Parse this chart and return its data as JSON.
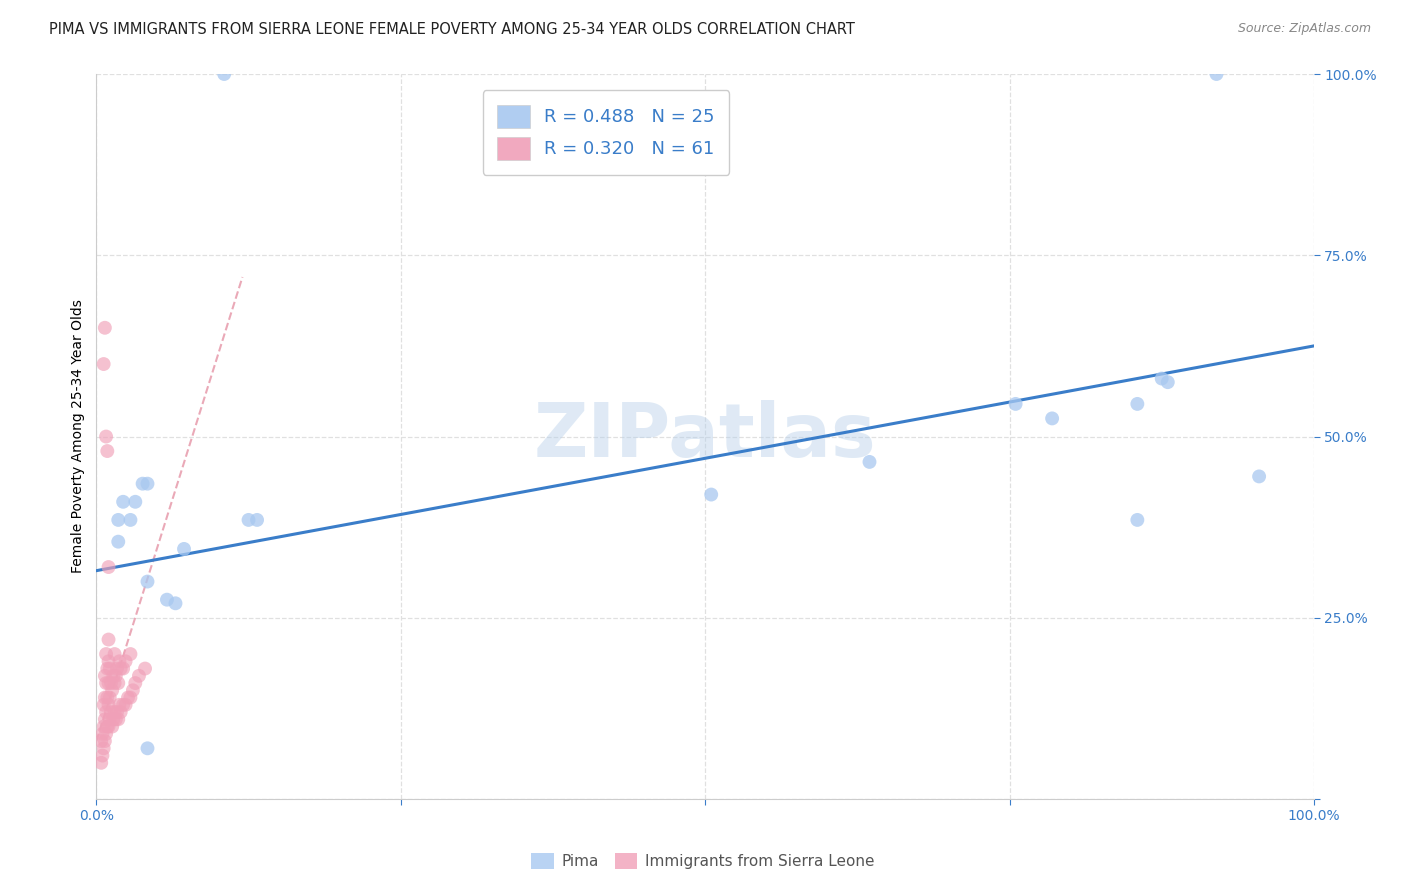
{
  "title": "PIMA VS IMMIGRANTS FROM SIERRA LEONE FEMALE POVERTY AMONG 25-34 YEAR OLDS CORRELATION CHART",
  "source": "Source: ZipAtlas.com",
  "ylabel": "Female Poverty Among 25-34 Year Olds",
  "xlim": [
    0,
    1.0
  ],
  "ylim": [
    0,
    1.0
  ],
  "watermark": "ZIPatlas",
  "legend_r1": "R = 0.488",
  "legend_n1": "N = 25",
  "legend_r2": "R = 0.320",
  "legend_n2": "N = 61",
  "color_pima": "#A8C8F0",
  "color_sierra": "#F0A0B8",
  "pima_scatter_x": [
    0.018,
    0.018,
    0.022,
    0.028,
    0.032,
    0.038,
    0.042,
    0.042,
    0.058,
    0.065,
    0.072,
    0.125,
    0.132,
    0.505,
    0.635,
    0.755,
    0.785,
    0.855,
    0.855,
    0.875,
    0.88,
    0.92,
    0.955,
    0.105,
    0.042
  ],
  "pima_scatter_y": [
    0.355,
    0.385,
    0.41,
    0.385,
    0.41,
    0.435,
    0.435,
    0.3,
    0.275,
    0.27,
    0.345,
    0.385,
    0.385,
    0.42,
    0.465,
    0.545,
    0.525,
    0.545,
    0.385,
    0.58,
    0.575,
    1.0,
    0.445,
    1.0,
    0.07
  ],
  "pima_trendline_x": [
    0.0,
    1.0
  ],
  "pima_trendline_y": [
    0.315,
    0.625
  ],
  "sierra_scatter_x": [
    0.004,
    0.004,
    0.005,
    0.005,
    0.006,
    0.006,
    0.006,
    0.007,
    0.007,
    0.007,
    0.007,
    0.008,
    0.008,
    0.008,
    0.008,
    0.009,
    0.009,
    0.009,
    0.01,
    0.01,
    0.01,
    0.01,
    0.01,
    0.011,
    0.011,
    0.011,
    0.012,
    0.012,
    0.013,
    0.013,
    0.014,
    0.014,
    0.015,
    0.015,
    0.015,
    0.016,
    0.016,
    0.017,
    0.017,
    0.018,
    0.018,
    0.019,
    0.019,
    0.02,
    0.02,
    0.022,
    0.022,
    0.024,
    0.024,
    0.026,
    0.028,
    0.028,
    0.03,
    0.032,
    0.035,
    0.04,
    0.006,
    0.007,
    0.008,
    0.009,
    0.01
  ],
  "sierra_scatter_y": [
    0.05,
    0.08,
    0.06,
    0.09,
    0.07,
    0.1,
    0.13,
    0.08,
    0.11,
    0.14,
    0.17,
    0.09,
    0.12,
    0.16,
    0.2,
    0.1,
    0.14,
    0.18,
    0.1,
    0.13,
    0.16,
    0.19,
    0.22,
    0.11,
    0.14,
    0.18,
    0.12,
    0.16,
    0.1,
    0.15,
    0.11,
    0.17,
    0.12,
    0.16,
    0.2,
    0.11,
    0.17,
    0.12,
    0.18,
    0.11,
    0.16,
    0.13,
    0.19,
    0.12,
    0.18,
    0.13,
    0.18,
    0.13,
    0.19,
    0.14,
    0.14,
    0.2,
    0.15,
    0.16,
    0.17,
    0.18,
    0.6,
    0.65,
    0.5,
    0.48,
    0.32
  ],
  "sierra_trendline_x": [
    0.0,
    0.12
  ],
  "sierra_trendline_y": [
    0.08,
    0.72
  ],
  "background_color": "#ffffff",
  "grid_color": "#e0e0e0",
  "title_fontsize": 10.5,
  "axis_label_fontsize": 10,
  "tick_fontsize": 10,
  "scatter_size": 100
}
